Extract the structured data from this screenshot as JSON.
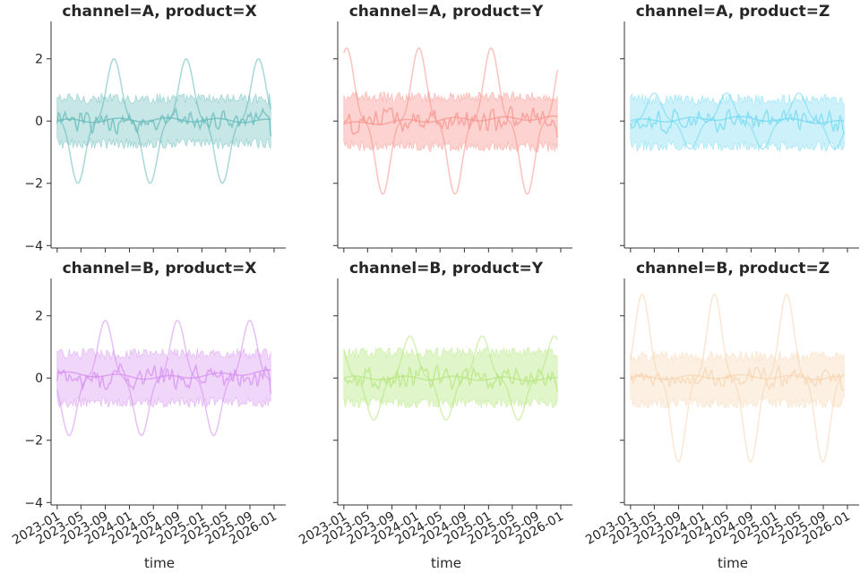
{
  "chart_data": {
    "type": "line",
    "layout": "facet grid, 2 rows x 3 columns, shared axes",
    "xlabel": "time",
    "ylabel": "",
    "ylim": [
      -4.05,
      3.2
    ],
    "y_ticks": [
      2,
      0,
      -2,
      -4
    ],
    "y_tick_labels": [
      "2",
      "0",
      "−2",
      "−4"
    ],
    "x_range": [
      "2022-12-01",
      "2026-03-01"
    ],
    "x_ticks": [
      "2023-01",
      "2023-05",
      "2023-09",
      "2024-01",
      "2024-05",
      "2024-09",
      "2025-01",
      "2025-05",
      "2025-09",
      "2026-01"
    ],
    "x_tick_labels": [
      "2023-01",
      "2023-05",
      "2023-09",
      "2024-01",
      "2024-05",
      "2024-09",
      "2025-01",
      "2025-05",
      "2025-09",
      "2026-01"
    ],
    "grid": false,
    "legend": "none",
    "date_start": "2023-01-01",
    "date_end": "2025-12-15",
    "panels": [
      {
        "title": "channel=A, product=X",
        "color": "#5fb8b8",
        "band_alpha": 0.35,
        "band": {
          "lower": -0.72,
          "upper": 0.72
        },
        "lines": [
          {
            "role": "mean",
            "values": [
              {
                "x": "2023-01-01",
                "y": 0.0
              },
              {
                "x": "2024-06-01",
                "y": 0.05
              },
              {
                "x": "2025-12-15",
                "y": 0.0
              }
            ]
          },
          {
            "role": "sine",
            "amplitude": 2.0,
            "period_days": 365,
            "peak": "2023-10-15"
          },
          {
            "role": "noise",
            "amplitude": 0.55
          }
        ]
      },
      {
        "title": "channel=A, product=Y",
        "color": "#f7928a",
        "band_alpha": 0.4,
        "band": {
          "lower": -0.82,
          "upper": 0.78
        },
        "lines": [
          {
            "role": "mean",
            "values": [
              {
                "x": "2023-01-01",
                "y": -0.1
              },
              {
                "x": "2024-06-01",
                "y": 0.05
              },
              {
                "x": "2025-12-15",
                "y": 0.1
              }
            ]
          },
          {
            "role": "sine",
            "amplitude": 2.35,
            "period_days": 365,
            "peak": "2023-01-15"
          },
          {
            "role": "noise",
            "amplitude": 0.6
          }
        ]
      },
      {
        "title": "channel=A, product=Z",
        "color": "#6fd8f0",
        "band_alpha": 0.35,
        "band": {
          "lower": -0.8,
          "upper": 0.7
        },
        "lines": [
          {
            "role": "mean",
            "values": [
              {
                "x": "2023-01-01",
                "y": 0.0
              },
              {
                "x": "2024-06-01",
                "y": 0.1
              },
              {
                "x": "2025-12-15",
                "y": -0.05
              }
            ]
          },
          {
            "role": "sine",
            "amplitude": 0.9,
            "period_days": 365,
            "peak": "2023-05-01"
          },
          {
            "role": "noise",
            "amplitude": 0.5
          }
        ]
      },
      {
        "title": "channel=B, product=X",
        "color": "#d48cf0",
        "band_alpha": 0.35,
        "band": {
          "lower": -0.78,
          "upper": 0.78
        },
        "lines": [
          {
            "role": "mean",
            "values": [
              {
                "x": "2023-01-01",
                "y": 0.15
              },
              {
                "x": "2024-06-01",
                "y": 0.0
              },
              {
                "x": "2025-12-15",
                "y": 0.2
              }
            ]
          },
          {
            "role": "sine",
            "amplitude": 1.85,
            "period_days": 365,
            "peak": "2023-09-01"
          },
          {
            "role": "noise",
            "amplitude": 0.6
          }
        ]
      },
      {
        "title": "channel=B, product=Y",
        "color": "#b4e67a",
        "band_alpha": 0.4,
        "band": {
          "lower": -0.8,
          "upper": 0.82
        },
        "lines": [
          {
            "role": "mean",
            "values": [
              {
                "x": "2023-01-01",
                "y": 0.0
              },
              {
                "x": "2024-06-01",
                "y": 0.0
              },
              {
                "x": "2025-12-15",
                "y": -0.05
              }
            ]
          },
          {
            "role": "sine",
            "amplitude": 1.35,
            "period_days": 365,
            "peak": "2023-12-01"
          },
          {
            "role": "noise",
            "amplitude": 0.55
          }
        ]
      },
      {
        "title": "channel=B, product=Z",
        "color": "#f7d3ae",
        "band_alpha": 0.35,
        "band": {
          "lower": -0.8,
          "upper": 0.7
        },
        "lines": [
          {
            "role": "mean",
            "values": [
              {
                "x": "2023-01-01",
                "y": 0.0
              },
              {
                "x": "2024-06-01",
                "y": 0.05
              },
              {
                "x": "2025-12-15",
                "y": 0.0
              }
            ]
          },
          {
            "role": "sine",
            "amplitude": 2.7,
            "period_days": 365,
            "peak": "2023-03-01"
          },
          {
            "role": "noise",
            "amplitude": 0.5
          }
        ]
      }
    ]
  }
}
